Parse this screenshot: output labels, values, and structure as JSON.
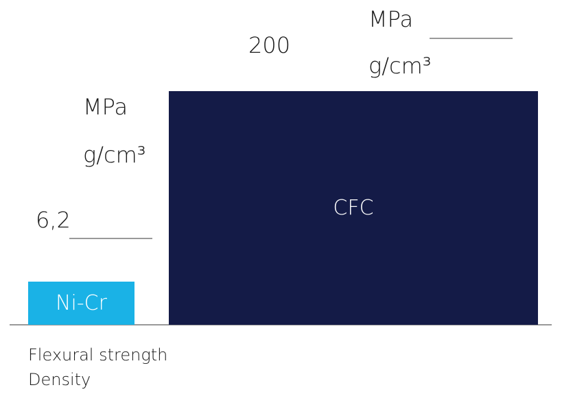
{
  "chart_data": {
    "type": "bar",
    "categories": [
      "Ni-Cr",
      "CFC"
    ],
    "series": [
      {
        "name": "Flexural strength / Density",
        "values": [
          6.2,
          200
        ]
      }
    ],
    "value_labels": [
      "6,2",
      "200"
    ],
    "unit_numerator": "MPa",
    "unit_denominator": "g/cm³",
    "title": "",
    "xlabel": "",
    "ylabel": "",
    "ylim": [
      0,
      200
    ],
    "grid": false,
    "colors": [
      "#1ab2e6",
      "#141b47"
    ],
    "legend_lines": [
      "Flexural strength",
      "Density"
    ]
  }
}
